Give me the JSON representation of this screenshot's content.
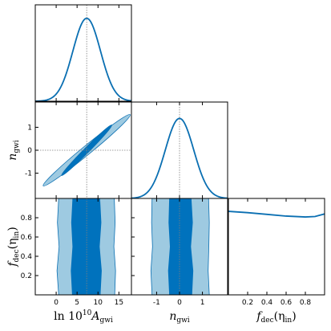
{
  "chart_data": {
    "type": "corner",
    "parameters": [
      {
        "id": "A",
        "label": "ln 10¹⁰A_gwi",
        "label_main": "ln 10",
        "label_sup": "10",
        "label_sym": "A",
        "label_sub": "gwi",
        "range": [
          -5,
          18
        ],
        "ticks": [
          0,
          5,
          10,
          15
        ],
        "truth": 7.3
      },
      {
        "id": "n",
        "label": "n_gwi",
        "label_sym": "n",
        "label_sub": "gwi",
        "range": [
          -2.1,
          2.1
        ],
        "ticks": [
          -1,
          0,
          1
        ],
        "truth": 0
      },
      {
        "id": "f",
        "label": "f_dec(η_in)",
        "label_sym": "f",
        "label_sub": "dec",
        "label_arg": "(η",
        "label_argsub": "in",
        "label_close": ")",
        "range": [
          0,
          1
        ],
        "ticks": [
          0.2,
          0.4,
          0.6,
          0.8
        ],
        "yrange": [
          0,
          1
        ],
        "yticks": [
          0.2,
          0.4,
          0.6,
          0.8
        ]
      }
    ],
    "marginals": {
      "A": {
        "type": "gaussian",
        "mean": 7.3,
        "sigma": 3.3
      },
      "n": {
        "type": "gaussian",
        "mean": 0.0,
        "sigma": 0.62
      },
      "f": {
        "type": "line",
        "points": [
          [
            0.0,
            0.97
          ],
          [
            0.2,
            0.955
          ],
          [
            0.4,
            0.935
          ],
          [
            0.6,
            0.915
          ],
          [
            0.8,
            0.905
          ],
          [
            0.9,
            0.91
          ],
          [
            1.0,
            0.94
          ]
        ],
        "ymax": 1.12
      }
    },
    "joint_A_n": {
      "inner": {
        "center": [
          7.3,
          0.0
        ],
        "x_halfwidth": 6.0,
        "y_halfwidth": 1.1,
        "minor_halfwidth": 0.07
      },
      "outer": {
        "center": [
          7.3,
          0.0
        ],
        "x_halfwidth": 10.4,
        "y_halfwidth": 1.55,
        "minor_halfwidth": 0.12
      }
    },
    "joint_A_f": {
      "inner": [
        [
          3.8,
          10.6
        ],
        [
          3.5,
          10.9
        ],
        [
          3.9,
          10.4
        ],
        [
          3.6,
          10.8
        ],
        [
          3.9,
          10.5
        ]
      ],
      "outer": [
        [
          0.6,
          14.0
        ],
        [
          0.2,
          14.2
        ],
        [
          0.7,
          13.8
        ],
        [
          0.3,
          14.1
        ],
        [
          0.6,
          13.9
        ]
      ],
      "f_samples": [
        0.0,
        0.25,
        0.5,
        0.75,
        1.0
      ]
    },
    "joint_n_f": {
      "inner": [
        [
          -0.45,
          0.55
        ],
        [
          -0.5,
          0.6
        ],
        [
          -0.42,
          0.5
        ],
        [
          -0.48,
          0.58
        ],
        [
          -0.45,
          0.52
        ]
      ],
      "outer": [
        [
          -1.2,
          1.3
        ],
        [
          -1.25,
          1.25
        ],
        [
          -1.18,
          1.28
        ],
        [
          -1.22,
          1.3
        ],
        [
          -1.2,
          1.27
        ]
      ],
      "f_samples": [
        0.0,
        0.25,
        0.5,
        0.75,
        1.0
      ]
    },
    "colors": {
      "line": "#0a6fb2",
      "inner": "#0072bd",
      "outer": "#9ecae1",
      "truth": "#7f7f7f"
    }
  }
}
